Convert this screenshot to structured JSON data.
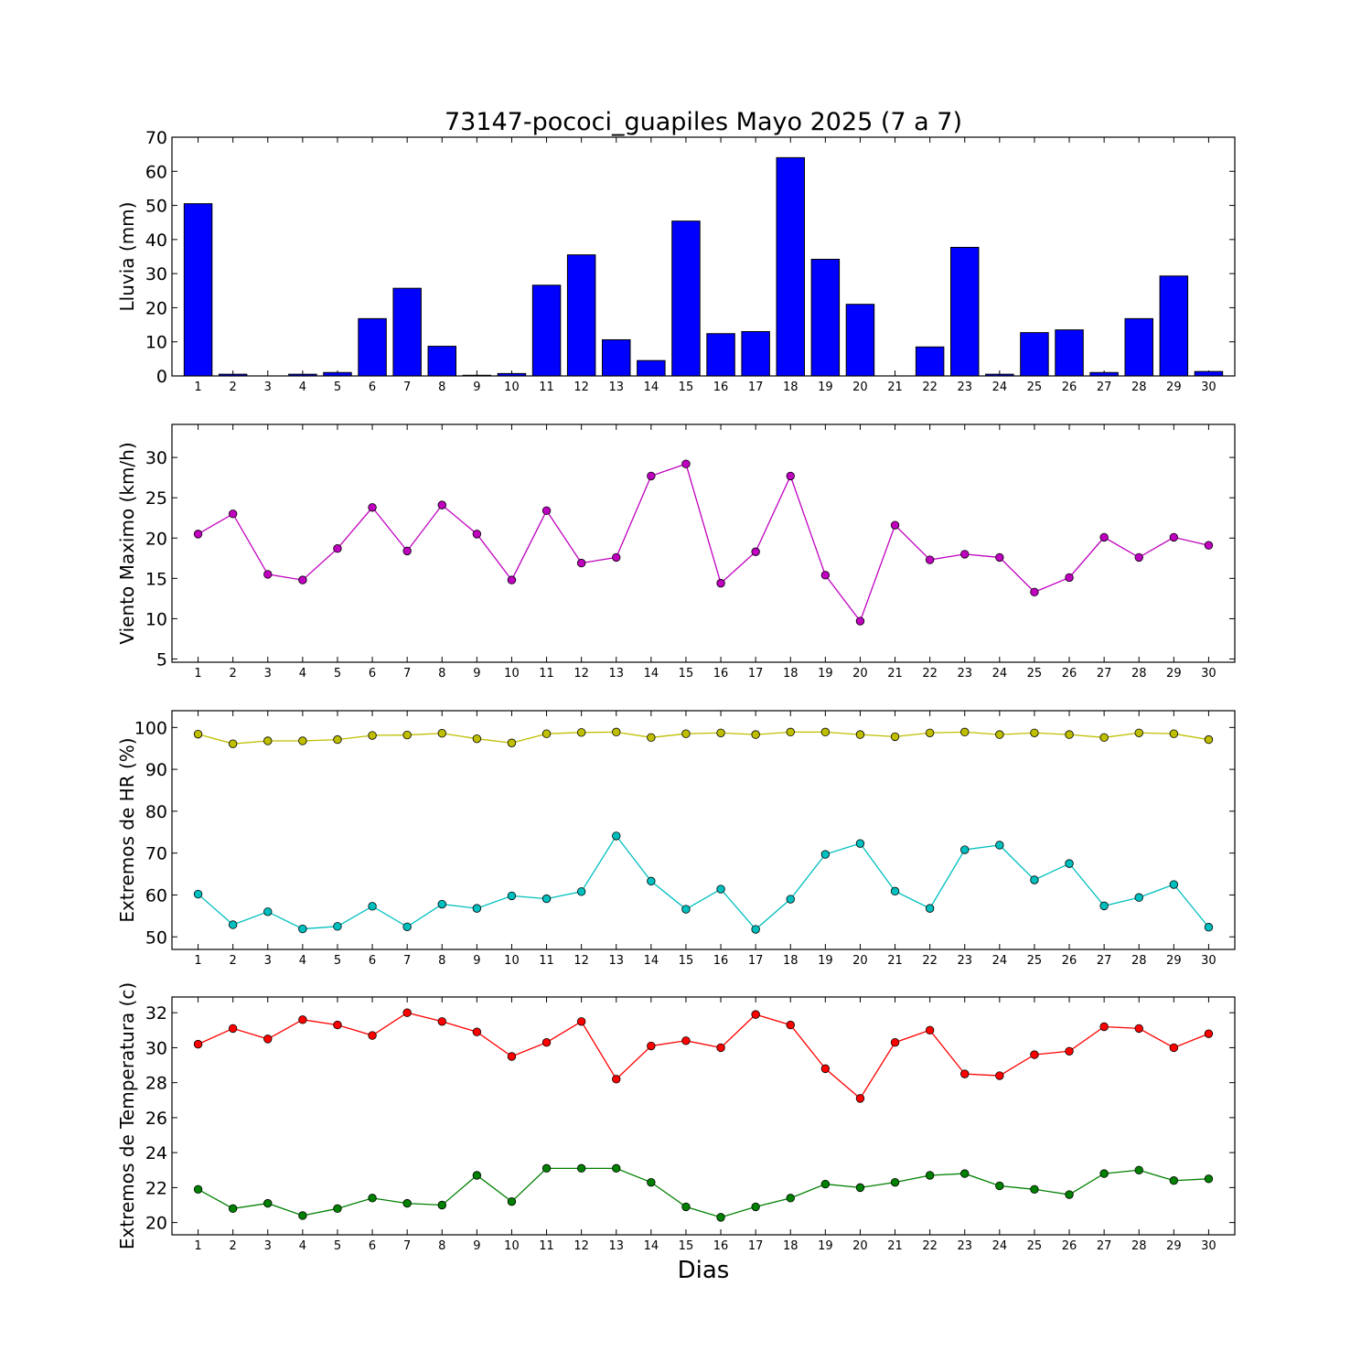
{
  "title": "73147-pococi_guapiles Mayo 2025  (7 a 7)",
  "xlabel": "Dias",
  "colors": {
    "lluvia": "#0000ff",
    "viento": "#bf00bf",
    "hr_max": "#bfbf00",
    "hr_min": "#00bfbf",
    "temp_max": "#ff0000",
    "temp_min": "#008000"
  },
  "chart_data": [
    {
      "type": "bar",
      "ylabel": "Lluvia (mm)",
      "ylim": [
        0,
        70
      ],
      "yticks": [
        0,
        10,
        20,
        30,
        40,
        50,
        60,
        70
      ],
      "categories": [
        1,
        2,
        3,
        4,
        5,
        6,
        7,
        8,
        9,
        10,
        11,
        12,
        13,
        14,
        15,
        16,
        17,
        18,
        19,
        20,
        21,
        22,
        23,
        24,
        25,
        26,
        27,
        28,
        29,
        30
      ],
      "series": [
        {
          "color": "#0000ff",
          "values": [
            50.5,
            0.5,
            0,
            0.5,
            1,
            16.8,
            25.7,
            8.7,
            0.2,
            0.7,
            26.6,
            35.5,
            10.6,
            4.5,
            45.4,
            12.4,
            13,
            64,
            34.2,
            21,
            0,
            8.5,
            37.7,
            0.5,
            12.7,
            13.5,
            1,
            16.8,
            29.3,
            1.3
          ]
        }
      ]
    },
    {
      "type": "line",
      "ylabel": "Viento Maximo (km/h)",
      "ylim": [
        4.6,
        34.1
      ],
      "yticks": [
        5,
        10,
        15,
        20,
        25,
        30
      ],
      "x": [
        1,
        2,
        3,
        4,
        5,
        6,
        7,
        8,
        9,
        10,
        11,
        12,
        13,
        14,
        15,
        16,
        17,
        18,
        19,
        20,
        21,
        22,
        23,
        24,
        25,
        26,
        27,
        28,
        29,
        30
      ],
      "series": [
        {
          "color": "#bf00bf",
          "values": [
            20.5,
            23,
            15.5,
            14.8,
            18.7,
            23.8,
            18.4,
            24.1,
            20.5,
            14.8,
            23.4,
            16.9,
            17.6,
            27.7,
            29.2,
            14.4,
            18.3,
            27.7,
            15.4,
            9.7,
            21.6,
            17.3,
            18,
            17.6,
            13.3,
            15.1,
            20.1,
            17.6,
            20.1,
            19.1
          ]
        }
      ]
    },
    {
      "type": "line",
      "ylabel": "Extremos de HR (%)",
      "ylim": [
        47,
        104
      ],
      "yticks": [
        50,
        60,
        70,
        80,
        90,
        100
      ],
      "x": [
        1,
        2,
        3,
        4,
        5,
        6,
        7,
        8,
        9,
        10,
        11,
        12,
        13,
        14,
        15,
        16,
        17,
        18,
        19,
        20,
        21,
        22,
        23,
        24,
        25,
        26,
        27,
        28,
        29,
        30
      ],
      "series": [
        {
          "color": "#bfbf00",
          "values": [
            98.4,
            96.1,
            96.8,
            96.8,
            97.1,
            98.1,
            98.2,
            98.6,
            97.3,
            96.3,
            98.5,
            98.8,
            98.9,
            97.6,
            98.5,
            98.7,
            98.3,
            98.9,
            98.9,
            98.3,
            97.8,
            98.7,
            98.9,
            98.3,
            98.7,
            98.3,
            97.6,
            98.7,
            98.5,
            97.1
          ]
        },
        {
          "color": "#00bfbf",
          "values": [
            60.2,
            52.9,
            56,
            51.9,
            52.5,
            57.3,
            52.4,
            57.8,
            56.8,
            59.8,
            59.1,
            60.8,
            74.1,
            63.3,
            56.6,
            61.4,
            51.8,
            59,
            69.7,
            72.3,
            60.9,
            56.8,
            70.8,
            71.9,
            63.6,
            67.5,
            57.4,
            59.4,
            62.5,
            52.3
          ]
        }
      ]
    },
    {
      "type": "line",
      "ylabel": "Extremos de Temperatura (c)",
      "ylim": [
        19.3,
        32.9
      ],
      "yticks": [
        20,
        22,
        24,
        26,
        28,
        30,
        32
      ],
      "x": [
        1,
        2,
        3,
        4,
        5,
        6,
        7,
        8,
        9,
        10,
        11,
        12,
        13,
        14,
        15,
        16,
        17,
        18,
        19,
        20,
        21,
        22,
        23,
        24,
        25,
        26,
        27,
        28,
        29,
        30
      ],
      "series": [
        {
          "color": "#ff0000",
          "values": [
            30.2,
            31.1,
            30.5,
            31.6,
            31.3,
            30.7,
            32,
            31.5,
            30.9,
            29.5,
            30.3,
            31.5,
            28.2,
            30.1,
            30.4,
            30,
            31.9,
            31.3,
            28.8,
            27.1,
            30.3,
            31,
            28.5,
            28.4,
            29.6,
            29.8,
            31.2,
            31.1,
            30,
            30.8
          ]
        },
        {
          "color": "#008000",
          "values": [
            21.9,
            20.8,
            21.1,
            20.4,
            20.8,
            21.4,
            21.1,
            21,
            22.7,
            21.2,
            23.1,
            23.1,
            23.1,
            22.3,
            20.9,
            20.3,
            20.9,
            21.4,
            22.2,
            22,
            22.3,
            22.7,
            22.8,
            22.1,
            21.9,
            21.6,
            22.8,
            23,
            22.4,
            22.5
          ]
        }
      ]
    }
  ]
}
